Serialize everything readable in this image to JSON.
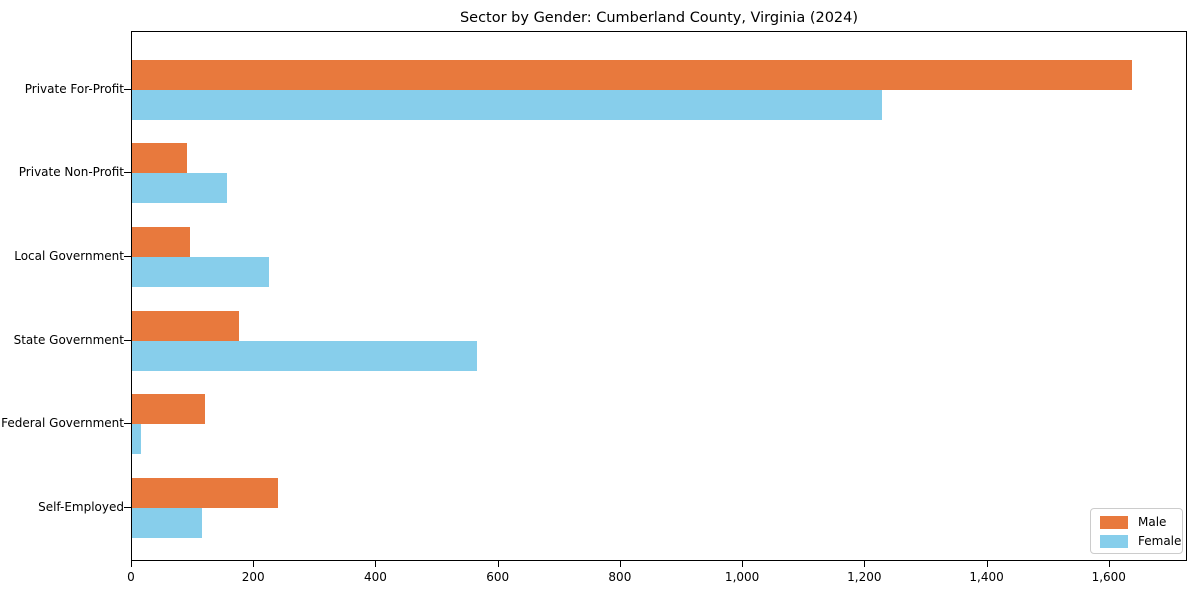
{
  "chart_data": {
    "type": "bar",
    "orientation": "horizontal",
    "title": "Sector by Gender: Cumberland County, Virginia (2024)",
    "categories": [
      "Private For-Profit",
      "Private Non-Profit",
      "Local Government",
      "State Government",
      "Federal Government",
      "Self-Employed"
    ],
    "series": [
      {
        "name": "Male",
        "color": "#e8793d",
        "values": [
          1640,
          90,
          95,
          175,
          120,
          240
        ]
      },
      {
        "name": "Female",
        "color": "#87ceeb",
        "values": [
          1230,
          155,
          225,
          565,
          15,
          115
        ]
      }
    ],
    "xlim": [
      0,
      1728
    ],
    "x_ticks": [
      0,
      200,
      400,
      600,
      800,
      1000,
      1200,
      1400,
      1600
    ],
    "x_tick_labels": [
      "0",
      "200",
      "400",
      "600",
      "800",
      "1,000",
      "1,200",
      "1,400",
      "1,600"
    ],
    "xlabel": "",
    "ylabel": "",
    "grid": false,
    "legend_position": "lower right"
  },
  "legend": {
    "items": [
      {
        "label": "Male",
        "color": "#e8793d"
      },
      {
        "label": "Female",
        "color": "#87ceeb"
      }
    ]
  }
}
